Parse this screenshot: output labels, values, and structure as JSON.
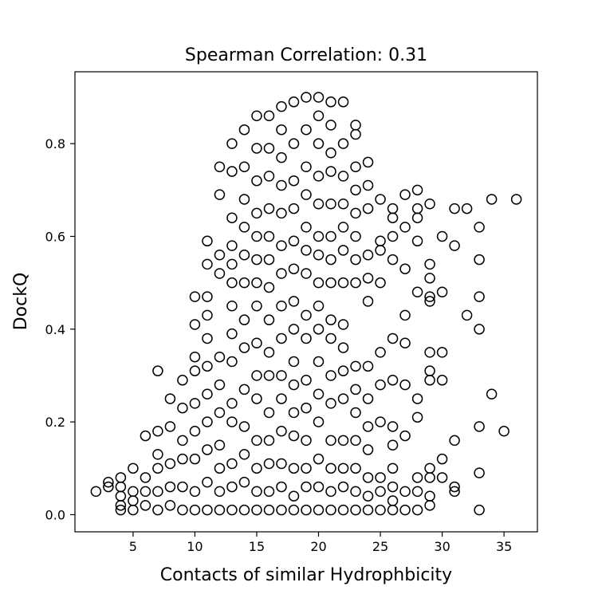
{
  "chart_data": {
    "type": "scatter",
    "title": "Spearman Correlation: 0.31",
    "xlabel": "Contacts of similar Hydrophbicity",
    "ylabel": "DockQ",
    "xlim": [
      0.3,
      37.7
    ],
    "ylim": [
      -0.037,
      0.955
    ],
    "xticks": [
      5,
      10,
      15,
      20,
      25,
      30,
      35
    ],
    "xtick_labels": [
      "5",
      "10",
      "15",
      "20",
      "25",
      "30",
      "35"
    ],
    "yticks": [
      0.0,
      0.2,
      0.4,
      0.6,
      0.8
    ],
    "ytick_labels": [
      "0.0",
      "0.2",
      "0.4",
      "0.6",
      "0.8"
    ],
    "grid": false,
    "legend": "none",
    "marker": "open-circle",
    "marker_color": "#000000",
    "series": [
      {
        "points": [
          [
            2,
            0.05
          ],
          [
            3,
            0.06
          ],
          [
            3,
            0.07
          ],
          [
            4,
            0.01
          ],
          [
            4,
            0.02
          ],
          [
            4,
            0.04
          ],
          [
            4,
            0.06
          ],
          [
            4,
            0.08
          ],
          [
            5,
            0.01
          ],
          [
            5,
            0.03
          ],
          [
            5,
            0.05
          ],
          [
            5,
            0.1
          ],
          [
            6,
            0.02
          ],
          [
            6,
            0.05
          ],
          [
            6,
            0.08
          ],
          [
            6,
            0.17
          ],
          [
            7,
            0.01
          ],
          [
            7,
            0.05
          ],
          [
            7,
            0.1
          ],
          [
            7,
            0.13
          ],
          [
            7,
            0.18
          ],
          [
            7,
            0.31
          ],
          [
            8,
            0.02
          ],
          [
            8,
            0.06
          ],
          [
            8,
            0.11
          ],
          [
            8,
            0.19
          ],
          [
            8,
            0.25
          ],
          [
            9,
            0.01
          ],
          [
            9,
            0.06
          ],
          [
            9,
            0.12
          ],
          [
            9,
            0.16
          ],
          [
            9,
            0.23
          ],
          [
            9,
            0.29
          ],
          [
            10,
            0.01
          ],
          [
            10,
            0.05
          ],
          [
            10,
            0.12
          ],
          [
            10,
            0.18
          ],
          [
            10,
            0.24
          ],
          [
            10,
            0.31
          ],
          [
            10,
            0.34
          ],
          [
            10,
            0.41
          ],
          [
            10,
            0.47
          ],
          [
            11,
            0.01
          ],
          [
            11,
            0.07
          ],
          [
            11,
            0.14
          ],
          [
            11,
            0.2
          ],
          [
            11,
            0.26
          ],
          [
            11,
            0.32
          ],
          [
            11,
            0.38
          ],
          [
            11,
            0.43
          ],
          [
            11,
            0.47
          ],
          [
            11,
            0.54
          ],
          [
            11,
            0.59
          ],
          [
            12,
            0.01
          ],
          [
            12,
            0.05
          ],
          [
            12,
            0.1
          ],
          [
            12,
            0.15
          ],
          [
            12,
            0.22
          ],
          [
            12,
            0.28
          ],
          [
            12,
            0.34
          ],
          [
            12,
            0.52
          ],
          [
            12,
            0.56
          ],
          [
            12,
            0.69
          ],
          [
            12,
            0.75
          ],
          [
            13,
            0.01
          ],
          [
            13,
            0.06
          ],
          [
            13,
            0.11
          ],
          [
            13,
            0.2
          ],
          [
            13,
            0.24
          ],
          [
            13,
            0.33
          ],
          [
            13,
            0.39
          ],
          [
            13,
            0.45
          ],
          [
            13,
            0.5
          ],
          [
            13,
            0.54
          ],
          [
            13,
            0.58
          ],
          [
            13,
            0.64
          ],
          [
            13,
            0.74
          ],
          [
            13,
            0.8
          ],
          [
            14,
            0.01
          ],
          [
            14,
            0.07
          ],
          [
            14,
            0.13
          ],
          [
            14,
            0.19
          ],
          [
            14,
            0.27
          ],
          [
            14,
            0.36
          ],
          [
            14,
            0.42
          ],
          [
            14,
            0.5
          ],
          [
            14,
            0.56
          ],
          [
            14,
            0.62
          ],
          [
            14,
            0.68
          ],
          [
            14,
            0.75
          ],
          [
            14,
            0.83
          ],
          [
            15,
            0.01
          ],
          [
            15,
            0.05
          ],
          [
            15,
            0.1
          ],
          [
            15,
            0.16
          ],
          [
            15,
            0.25
          ],
          [
            15,
            0.3
          ],
          [
            15,
            0.37
          ],
          [
            15,
            0.45
          ],
          [
            15,
            0.5
          ],
          [
            15,
            0.55
          ],
          [
            15,
            0.6
          ],
          [
            15,
            0.65
          ],
          [
            15,
            0.72
          ],
          [
            15,
            0.79
          ],
          [
            15,
            0.86
          ],
          [
            16,
            0.01
          ],
          [
            16,
            0.05
          ],
          [
            16,
            0.11
          ],
          [
            16,
            0.16
          ],
          [
            16,
            0.22
          ],
          [
            16,
            0.3
          ],
          [
            16,
            0.35
          ],
          [
            16,
            0.42
          ],
          [
            16,
            0.49
          ],
          [
            16,
            0.55
          ],
          [
            16,
            0.6
          ],
          [
            16,
            0.66
          ],
          [
            16,
            0.73
          ],
          [
            16,
            0.79
          ],
          [
            16,
            0.86
          ],
          [
            17,
            0.01
          ],
          [
            17,
            0.06
          ],
          [
            17,
            0.11
          ],
          [
            17,
            0.18
          ],
          [
            17,
            0.25
          ],
          [
            17,
            0.3
          ],
          [
            17,
            0.38
          ],
          [
            17,
            0.45
          ],
          [
            17,
            0.52
          ],
          [
            17,
            0.58
          ],
          [
            17,
            0.65
          ],
          [
            17,
            0.71
          ],
          [
            17,
            0.77
          ],
          [
            17,
            0.83
          ],
          [
            17,
            0.88
          ],
          [
            18,
            0.01
          ],
          [
            18,
            0.04
          ],
          [
            18,
            0.1
          ],
          [
            18,
            0.17
          ],
          [
            18,
            0.22
          ],
          [
            18,
            0.28
          ],
          [
            18,
            0.33
          ],
          [
            18,
            0.4
          ],
          [
            18,
            0.46
          ],
          [
            18,
            0.53
          ],
          [
            18,
            0.59
          ],
          [
            18,
            0.66
          ],
          [
            18,
            0.72
          ],
          [
            18,
            0.8
          ],
          [
            18,
            0.89
          ],
          [
            19,
            0.01
          ],
          [
            19,
            0.06
          ],
          [
            19,
            0.1
          ],
          [
            19,
            0.16
          ],
          [
            19,
            0.23
          ],
          [
            19,
            0.29
          ],
          [
            19,
            0.38
          ],
          [
            19,
            0.43
          ],
          [
            19,
            0.52
          ],
          [
            19,
            0.57
          ],
          [
            19,
            0.62
          ],
          [
            19,
            0.69
          ],
          [
            19,
            0.75
          ],
          [
            19,
            0.83
          ],
          [
            19,
            0.9
          ],
          [
            20,
            0.01
          ],
          [
            20,
            0.06
          ],
          [
            20,
            0.12
          ],
          [
            20,
            0.2
          ],
          [
            20,
            0.26
          ],
          [
            20,
            0.33
          ],
          [
            20,
            0.4
          ],
          [
            20,
            0.45
          ],
          [
            20,
            0.5
          ],
          [
            20,
            0.56
          ],
          [
            20,
            0.6
          ],
          [
            20,
            0.67
          ],
          [
            20,
            0.73
          ],
          [
            20,
            0.8
          ],
          [
            20,
            0.86
          ],
          [
            20,
            0.9
          ],
          [
            21,
            0.01
          ],
          [
            21,
            0.05
          ],
          [
            21,
            0.1
          ],
          [
            21,
            0.16
          ],
          [
            21,
            0.24
          ],
          [
            21,
            0.3
          ],
          [
            21,
            0.38
          ],
          [
            21,
            0.42
          ],
          [
            21,
            0.5
          ],
          [
            21,
            0.55
          ],
          [
            21,
            0.6
          ],
          [
            21,
            0.67
          ],
          [
            21,
            0.74
          ],
          [
            21,
            0.78
          ],
          [
            21,
            0.84
          ],
          [
            21,
            0.89
          ],
          [
            22,
            0.01
          ],
          [
            22,
            0.06
          ],
          [
            22,
            0.1
          ],
          [
            22,
            0.16
          ],
          [
            22,
            0.25
          ],
          [
            22,
            0.31
          ],
          [
            22,
            0.36
          ],
          [
            22,
            0.41
          ],
          [
            22,
            0.5
          ],
          [
            22,
            0.57
          ],
          [
            22,
            0.62
          ],
          [
            22,
            0.67
          ],
          [
            22,
            0.73
          ],
          [
            22,
            0.8
          ],
          [
            22,
            0.89
          ],
          [
            23,
            0.01
          ],
          [
            23,
            0.05
          ],
          [
            23,
            0.1
          ],
          [
            23,
            0.16
          ],
          [
            23,
            0.22
          ],
          [
            23,
            0.27
          ],
          [
            23,
            0.32
          ],
          [
            23,
            0.5
          ],
          [
            23,
            0.55
          ],
          [
            23,
            0.6
          ],
          [
            23,
            0.65
          ],
          [
            23,
            0.7
          ],
          [
            23,
            0.75
          ],
          [
            23,
            0.82
          ],
          [
            23,
            0.84
          ],
          [
            24,
            0.01
          ],
          [
            24,
            0.04
          ],
          [
            24,
            0.08
          ],
          [
            24,
            0.14
          ],
          [
            24,
            0.19
          ],
          [
            24,
            0.25
          ],
          [
            24,
            0.32
          ],
          [
            24,
            0.46
          ],
          [
            24,
            0.51
          ],
          [
            24,
            0.56
          ],
          [
            24,
            0.66
          ],
          [
            24,
            0.71
          ],
          [
            24,
            0.76
          ],
          [
            25,
            0.01
          ],
          [
            25,
            0.05
          ],
          [
            25,
            0.08
          ],
          [
            25,
            0.2
          ],
          [
            25,
            0.28
          ],
          [
            25,
            0.35
          ],
          [
            25,
            0.5
          ],
          [
            25,
            0.57
          ],
          [
            25,
            0.59
          ],
          [
            25,
            0.68
          ],
          [
            26,
            0.01
          ],
          [
            26,
            0.03
          ],
          [
            26,
            0.06
          ],
          [
            26,
            0.1
          ],
          [
            26,
            0.15
          ],
          [
            26,
            0.19
          ],
          [
            26,
            0.29
          ],
          [
            26,
            0.38
          ],
          [
            26,
            0.55
          ],
          [
            26,
            0.6
          ],
          [
            26,
            0.64
          ],
          [
            26,
            0.66
          ],
          [
            27,
            0.01
          ],
          [
            27,
            0.05
          ],
          [
            27,
            0.17
          ],
          [
            27,
            0.28
          ],
          [
            27,
            0.37
          ],
          [
            27,
            0.43
          ],
          [
            27,
            0.53
          ],
          [
            27,
            0.62
          ],
          [
            27,
            0.69
          ],
          [
            28,
            0.01
          ],
          [
            28,
            0.05
          ],
          [
            28,
            0.08
          ],
          [
            28,
            0.21
          ],
          [
            28,
            0.25
          ],
          [
            28,
            0.48
          ],
          [
            28,
            0.59
          ],
          [
            28,
            0.64
          ],
          [
            28,
            0.66
          ],
          [
            28,
            0.7
          ],
          [
            29,
            0.02
          ],
          [
            29,
            0.04
          ],
          [
            29,
            0.08
          ],
          [
            29,
            0.1
          ],
          [
            29,
            0.29
          ],
          [
            29,
            0.31
          ],
          [
            29,
            0.35
          ],
          [
            29,
            0.46
          ],
          [
            29,
            0.47
          ],
          [
            29,
            0.51
          ],
          [
            29,
            0.54
          ],
          [
            29,
            0.67
          ],
          [
            30,
            0.08
          ],
          [
            30,
            0.12
          ],
          [
            30,
            0.29
          ],
          [
            30,
            0.35
          ],
          [
            30,
            0.48
          ],
          [
            30,
            0.6
          ],
          [
            31,
            0.05
          ],
          [
            31,
            0.06
          ],
          [
            31,
            0.16
          ],
          [
            31,
            0.58
          ],
          [
            31,
            0.66
          ],
          [
            32,
            0.43
          ],
          [
            32,
            0.66
          ],
          [
            33,
            0.01
          ],
          [
            33,
            0.09
          ],
          [
            33,
            0.19
          ],
          [
            33,
            0.4
          ],
          [
            33,
            0.47
          ],
          [
            33,
            0.55
          ],
          [
            33,
            0.62
          ],
          [
            34,
            0.26
          ],
          [
            34,
            0.68
          ],
          [
            35,
            0.18
          ],
          [
            36,
            0.68
          ]
        ]
      }
    ]
  }
}
